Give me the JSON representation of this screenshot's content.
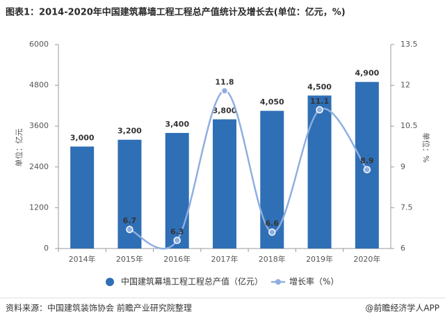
{
  "chart_data": {
    "type": "bar-line",
    "title": "图表1：2014-2020年中国建筑幕墙工程工程总产值统计及增长去(单位：亿元，%)",
    "categories": [
      "2014年",
      "2015年",
      "2016年",
      "2017年",
      "2018年",
      "2019年",
      "2020年"
    ],
    "series": [
      {
        "name": "中国建筑幕墙工程工程总产值（亿元）",
        "type": "bar",
        "color": "#2f6fb5",
        "values": [
          3000,
          3200,
          3400,
          3800,
          4050,
          4500,
          4900
        ],
        "value_labels": [
          "3,000",
          "3,200",
          "3,400",
          "3,800",
          "4,050",
          "4,500",
          "4,900"
        ]
      },
      {
        "name": "增长率（%）",
        "type": "line",
        "axis": "y2",
        "color": "#8eaee0",
        "values": [
          null,
          6.7,
          6.3,
          11.8,
          6.6,
          11.1,
          8.9
        ]
      }
    ],
    "ylabel": "单位：亿元",
    "y2label": "单位：%",
    "ylim": [
      0,
      6000
    ],
    "yticks": [
      0,
      1200,
      2400,
      3600,
      4800,
      6000
    ],
    "y2lim": [
      6,
      13.5
    ],
    "y2ticks": [
      6,
      7.5,
      9,
      10.5,
      12,
      13.5
    ],
    "source": "资料来源：中国建筑装饰协会 前瞻产业研究院整理",
    "credit": "@前瞻经济学人APP"
  }
}
